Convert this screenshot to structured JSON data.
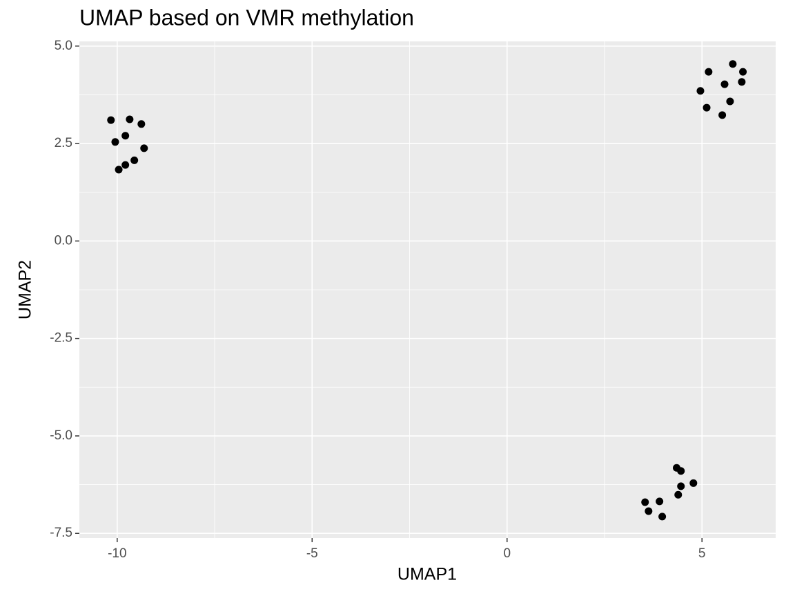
{
  "chart_data": {
    "type": "scatter",
    "title": "UMAP based on VMR methylation",
    "x_label": "UMAP1",
    "y_label": "UMAP2",
    "x": [
      -10.16,
      -9.68,
      -9.38,
      -10.05,
      -9.79,
      -9.31,
      -9.56,
      -9.79,
      -9.96,
      5.79,
      5.17,
      6.05,
      5.58,
      6.02,
      4.96,
      5.72,
      5.12,
      5.52,
      4.35,
      4.46,
      4.78,
      4.46,
      4.39,
      3.54,
      3.91,
      3.63,
      3.98
    ],
    "values": [
      3.1,
      3.12,
      3.0,
      2.54,
      2.7,
      2.38,
      2.07,
      1.95,
      1.83,
      4.54,
      4.34,
      4.34,
      4.02,
      4.08,
      3.85,
      3.58,
      3.42,
      3.23,
      -5.82,
      -5.9,
      -6.21,
      -6.29,
      -6.51,
      -6.7,
      -6.68,
      -6.93,
      -7.07
    ],
    "color": "#000000",
    "xlim": [
      -10.97,
      6.89
    ],
    "ylim": [
      -7.62,
      5.12
    ],
    "xticks": [
      -10,
      -5,
      0,
      5
    ],
    "yticks": [
      {
        "value": 5,
        "label": "5.0"
      },
      2.5,
      {
        "value": 0,
        "label": "0.0"
      },
      -2.5,
      {
        "value": -5,
        "label": "-5.0"
      },
      -7.5
    ],
    "grid": true
  }
}
